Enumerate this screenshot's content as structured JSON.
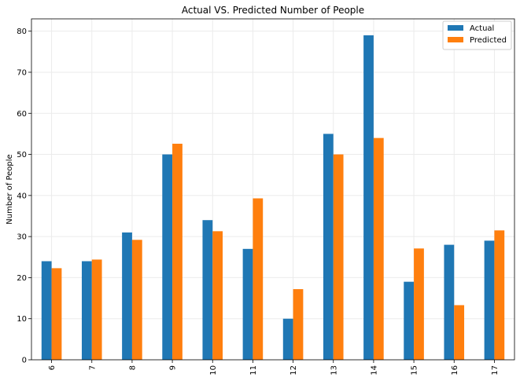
{
  "chart_data": {
    "type": "bar",
    "title": "Actual VS. Predicted Number of People",
    "xlabel": "",
    "ylabel": "Number of People",
    "categories": [
      "6",
      "7",
      "8",
      "9",
      "10",
      "11",
      "12",
      "13",
      "14",
      "15",
      "16",
      "17"
    ],
    "series": [
      {
        "name": "Actual",
        "color": "#1f77b4",
        "values": [
          24,
          24,
          31,
          50,
          34,
          27,
          10,
          55,
          79,
          19,
          28,
          29
        ]
      },
      {
        "name": "Predicted",
        "color": "#ff7f0e",
        "values": [
          22.3,
          24.4,
          29.2,
          52.6,
          31.3,
          39.3,
          17.2,
          50,
          54,
          27.1,
          13.3,
          31.5
        ]
      }
    ],
    "ylim": [
      0,
      83
    ],
    "yticks": [
      0,
      10,
      20,
      30,
      40,
      50,
      60,
      70,
      80
    ],
    "grid": true,
    "legend_position": "top-right"
  }
}
